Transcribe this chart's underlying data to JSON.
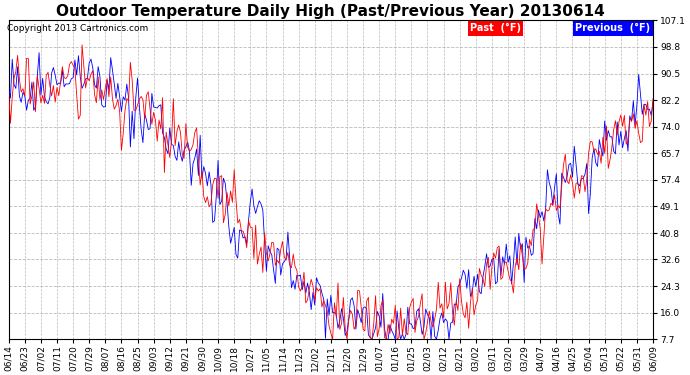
{
  "title": "Outdoor Temperature Daily High (Past/Previous Year) 20130614",
  "copyright": "Copyright 2013 Cartronics.com",
  "previous_label": "Previous  (°F)",
  "past_label": "Past  (°F)",
  "previous_color": "#0000ff",
  "past_color": "#ff0000",
  "yticks": [
    7.7,
    16.0,
    24.3,
    32.6,
    40.8,
    49.1,
    57.4,
    65.7,
    74.0,
    82.2,
    90.5,
    98.8,
    107.1
  ],
  "ylim": [
    7.7,
    107.1
  ],
  "bg_color": "#ffffff",
  "grid_color": "#aaaaaa",
  "title_fontsize": 11,
  "copyright_fontsize": 6.5,
  "tick_fontsize": 6.5,
  "legend_fontsize": 7,
  "xtick_labels": [
    "06/14",
    "06/23",
    "07/02",
    "07/11",
    "07/20",
    "07/29",
    "08/07",
    "08/16",
    "08/25",
    "09/03",
    "09/12",
    "09/21",
    "09/30",
    "10/09",
    "10/18",
    "10/27",
    "11/05",
    "11/14",
    "11/23",
    "12/02",
    "12/11",
    "12/20",
    "12/29",
    "01/07",
    "01/16",
    "01/25",
    "02/03",
    "02/12",
    "02/21",
    "03/02",
    "03/11",
    "03/20",
    "03/29",
    "04/07",
    "04/16",
    "04/25",
    "05/04",
    "05/13",
    "05/22",
    "05/31",
    "06/09"
  ]
}
